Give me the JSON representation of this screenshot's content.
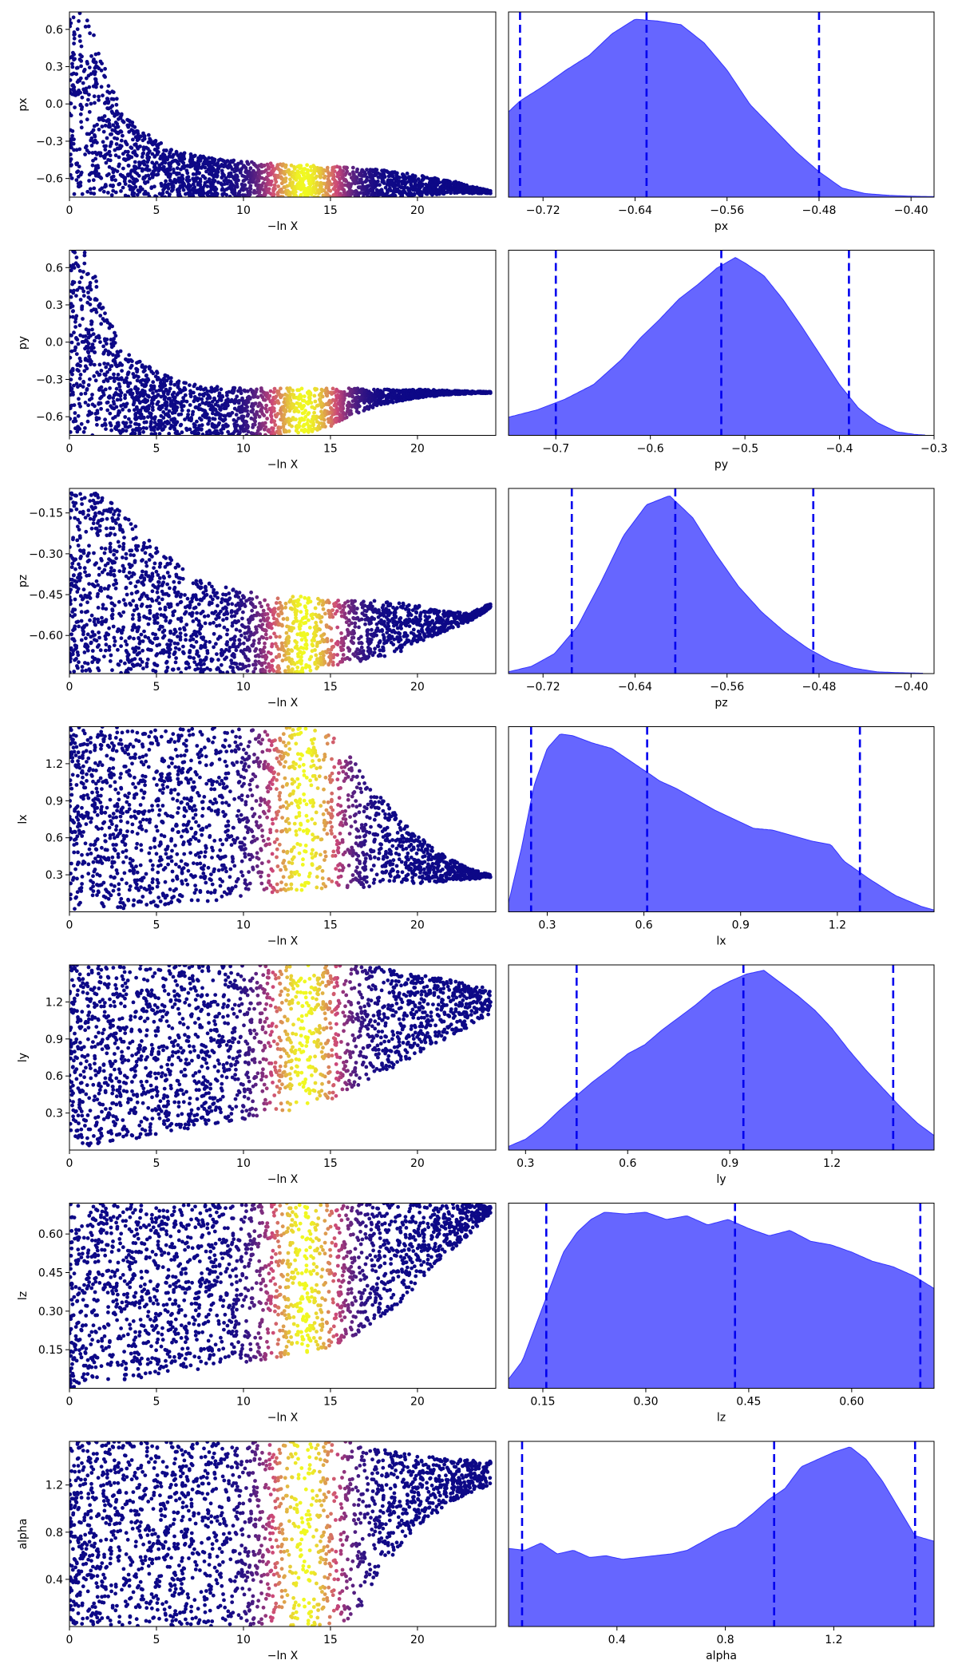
{
  "figure": {
    "type": "trace-plot",
    "rows": 7,
    "columns": 2
  },
  "colors": {
    "scatter_low": "#0d0887",
    "scatter_mid": "#cc4778",
    "scatter_high": "#f0f921",
    "kde_fill": "#6666ff",
    "kde_edge": "#3333ff",
    "quantile_line": "#0000ee"
  },
  "chart_data": [
    {
      "panel": "trace",
      "param": "px",
      "type": "scatter",
      "colormap": "plasma",
      "xlabel": "−ln X",
      "ylabel": "px",
      "xlim": [
        0,
        24.5
      ],
      "ylim": [
        -0.75,
        0.74
      ],
      "xticks": [
        0,
        5,
        10,
        15,
        20
      ],
      "xticklabels": [
        "0",
        "5",
        "10",
        "15",
        "20"
      ],
      "yticks": [
        0.6,
        0.3,
        0.0,
        -0.3,
        -0.6
      ],
      "yticklabels": [
        "0.6",
        "0.3",
        "0.0",
        "−0.3",
        "−0.6"
      ],
      "envelope": {
        "x": [
          0,
          1,
          2,
          3,
          4,
          6,
          8,
          10,
          12,
          15,
          18,
          20,
          22,
          24.2
        ],
        "upper": [
          0.74,
          0.74,
          0.3,
          -0.05,
          -0.2,
          -0.38,
          -0.43,
          -0.46,
          -0.48,
          -0.5,
          -0.53,
          -0.57,
          -0.62,
          -0.7
        ],
        "lower": [
          -0.75,
          -0.75,
          -0.75,
          -0.75,
          -0.75,
          -0.75,
          -0.75,
          -0.75,
          -0.75,
          -0.75,
          -0.75,
          -0.74,
          -0.72,
          -0.72
        ]
      }
    },
    {
      "panel": "posterior",
      "param": "px",
      "type": "area",
      "xlabel": "px",
      "xlim": [
        -0.75,
        -0.38
      ],
      "xticks": [
        -0.72,
        -0.64,
        -0.56,
        -0.48,
        -0.4
      ],
      "xticklabels": [
        "−0.72",
        "−0.64",
        "−0.56",
        "−0.48",
        "−0.40"
      ],
      "quantiles": [
        -0.74,
        -0.63,
        -0.48
      ],
      "density": {
        "x": [
          -0.75,
          -0.74,
          -0.72,
          -0.7,
          -0.68,
          -0.66,
          -0.64,
          -0.62,
          -0.6,
          -0.58,
          -0.56,
          -0.54,
          -0.52,
          -0.5,
          -0.48,
          -0.46,
          -0.44,
          -0.42,
          -0.4,
          -0.38
        ],
        "y": [
          0.47,
          0.53,
          0.61,
          0.7,
          0.78,
          0.9,
          0.98,
          0.97,
          0.95,
          0.85,
          0.7,
          0.51,
          0.38,
          0.25,
          0.14,
          0.05,
          0.02,
          0.01,
          0.005,
          0.003
        ]
      }
    },
    {
      "panel": "trace",
      "param": "py",
      "type": "scatter",
      "colormap": "plasma",
      "xlabel": "−ln X",
      "ylabel": "py",
      "xlim": [
        0,
        24.5
      ],
      "ylim": [
        -0.75,
        0.74
      ],
      "xticks": [
        0,
        5,
        10,
        15,
        20
      ],
      "xticklabels": [
        "0",
        "5",
        "10",
        "15",
        "20"
      ],
      "yticks": [
        0.6,
        0.3,
        0.0,
        -0.3,
        -0.6
      ],
      "yticklabels": [
        "0.6",
        "0.3",
        "0.0",
        "−0.3",
        "−0.6"
      ],
      "envelope": {
        "x": [
          0,
          1,
          2,
          3,
          4,
          6,
          8,
          10,
          12,
          14,
          15,
          16,
          18,
          20,
          22,
          24.2
        ],
        "upper": [
          0.74,
          0.74,
          0.3,
          -0.05,
          -0.15,
          -0.3,
          -0.35,
          -0.37,
          -0.37,
          -0.37,
          -0.37,
          -0.37,
          -0.38,
          -0.38,
          -0.39,
          -0.4
        ],
        "lower": [
          -0.75,
          -0.75,
          -0.75,
          -0.75,
          -0.75,
          -0.75,
          -0.75,
          -0.75,
          -0.75,
          -0.72,
          -0.68,
          -0.6,
          -0.5,
          -0.45,
          -0.42,
          -0.41
        ]
      }
    },
    {
      "panel": "posterior",
      "param": "py",
      "type": "area",
      "xlabel": "py",
      "xlim": [
        -0.75,
        -0.3
      ],
      "xticks": [
        -0.7,
        -0.6,
        -0.5,
        -0.4,
        -0.3
      ],
      "xticklabels": [
        "−0.7",
        "−0.6",
        "−0.5",
        "−0.4",
        "−0.3"
      ],
      "quantiles": [
        -0.7,
        -0.525,
        -0.39
      ],
      "density": {
        "x": [
          -0.75,
          -0.72,
          -0.69,
          -0.66,
          -0.63,
          -0.61,
          -0.59,
          -0.57,
          -0.55,
          -0.53,
          -0.51,
          -0.5,
          -0.48,
          -0.46,
          -0.44,
          -0.42,
          -0.4,
          -0.38,
          -0.36,
          -0.34,
          -0.32,
          -0.31
        ],
        "y": [
          0.1,
          0.14,
          0.2,
          0.28,
          0.42,
          0.54,
          0.64,
          0.75,
          0.83,
          0.92,
          0.98,
          0.95,
          0.88,
          0.75,
          0.6,
          0.44,
          0.28,
          0.15,
          0.07,
          0.02,
          0.005,
          0.002
        ]
      }
    },
    {
      "panel": "trace",
      "param": "pz",
      "type": "scatter",
      "colormap": "plasma",
      "xlabel": "−ln X",
      "ylabel": "pz",
      "xlim": [
        0,
        24.5
      ],
      "ylim": [
        -0.74,
        -0.06
      ],
      "xticks": [
        0,
        5,
        10,
        15,
        20
      ],
      "xticklabels": [
        "0",
        "5",
        "10",
        "15",
        "20"
      ],
      "yticks": [
        -0.15,
        -0.3,
        -0.45,
        -0.6
      ],
      "yticklabels": [
        "−0.15",
        "−0.30",
        "−0.45",
        "−0.60"
      ],
      "envelope": {
        "x": [
          0,
          1,
          2,
          3,
          5,
          7,
          9,
          11,
          13,
          15,
          17,
          19,
          21,
          23,
          24.2
        ],
        "upper": [
          -0.06,
          -0.06,
          -0.08,
          -0.15,
          -0.27,
          -0.38,
          -0.42,
          -0.45,
          -0.45,
          -0.47,
          -0.47,
          -0.48,
          -0.5,
          -0.52,
          -0.48
        ],
        "lower": [
          -0.74,
          -0.74,
          -0.74,
          -0.74,
          -0.74,
          -0.74,
          -0.74,
          -0.74,
          -0.74,
          -0.72,
          -0.7,
          -0.66,
          -0.6,
          -0.55,
          -0.5
        ]
      }
    },
    {
      "panel": "posterior",
      "param": "pz",
      "type": "area",
      "xlabel": "pz",
      "xlim": [
        -0.75,
        -0.38
      ],
      "xticks": [
        -0.72,
        -0.64,
        -0.56,
        -0.48,
        -0.4
      ],
      "xticklabels": [
        "−0.72",
        "−0.64",
        "−0.56",
        "−0.48",
        "−0.40"
      ],
      "quantiles": [
        -0.695,
        -0.605,
        -0.485
      ],
      "density": {
        "x": [
          -0.75,
          -0.73,
          -0.71,
          -0.69,
          -0.67,
          -0.65,
          -0.63,
          -0.61,
          -0.59,
          -0.57,
          -0.55,
          -0.53,
          -0.51,
          -0.49,
          -0.47,
          -0.45,
          -0.43,
          -0.41,
          -0.39
        ],
        "y": [
          0.01,
          0.04,
          0.11,
          0.26,
          0.5,
          0.76,
          0.93,
          0.98,
          0.86,
          0.66,
          0.48,
          0.34,
          0.23,
          0.14,
          0.07,
          0.03,
          0.01,
          0.005,
          0.002
        ]
      }
    },
    {
      "panel": "trace",
      "param": "lx",
      "type": "scatter",
      "colormap": "plasma",
      "xlabel": "−ln X",
      "ylabel": "lx",
      "xlim": [
        0,
        24.5
      ],
      "ylim": [
        0.0,
        1.5
      ],
      "xticks": [
        0,
        5,
        10,
        15,
        20
      ],
      "xticklabels": [
        "0",
        "5",
        "10",
        "15",
        "20"
      ],
      "yticks": [
        1.2,
        0.9,
        0.6,
        0.3
      ],
      "yticklabels": [
        "1.2",
        "0.9",
        "0.6",
        "0.3"
      ],
      "envelope": {
        "x": [
          0,
          2,
          6,
          10,
          13,
          15,
          17,
          19,
          21,
          23,
          24.2
        ],
        "upper": [
          1.5,
          1.5,
          1.5,
          1.5,
          1.5,
          1.45,
          1.1,
          0.75,
          0.5,
          0.35,
          0.3
        ],
        "lower": [
          0.0,
          0.02,
          0.05,
          0.12,
          0.17,
          0.19,
          0.2,
          0.22,
          0.24,
          0.26,
          0.28
        ]
      }
    },
    {
      "panel": "posterior",
      "param": "lx",
      "type": "area",
      "xlabel": "lx",
      "xlim": [
        0.18,
        1.5
      ],
      "xticks": [
        0.3,
        0.6,
        0.9,
        1.2
      ],
      "xticklabels": [
        "0.3",
        "0.6",
        "0.9",
        "1.2"
      ],
      "quantiles": [
        0.25,
        0.61,
        1.27
      ],
      "density": {
        "x": [
          0.18,
          0.22,
          0.26,
          0.3,
          0.34,
          0.38,
          0.44,
          0.5,
          0.55,
          0.6,
          0.65,
          0.7,
          0.76,
          0.82,
          0.88,
          0.94,
          1.0,
          1.06,
          1.12,
          1.18,
          1.22,
          1.3,
          1.38,
          1.46,
          1.5
        ],
        "y": [
          0.05,
          0.35,
          0.7,
          0.9,
          0.98,
          0.97,
          0.93,
          0.9,
          0.84,
          0.78,
          0.72,
          0.68,
          0.62,
          0.56,
          0.51,
          0.46,
          0.45,
          0.42,
          0.39,
          0.37,
          0.28,
          0.18,
          0.09,
          0.03,
          0.01
        ]
      }
    },
    {
      "panel": "trace",
      "param": "ly",
      "type": "scatter",
      "colormap": "plasma",
      "xlabel": "−ln X",
      "ylabel": "ly",
      "xlim": [
        0,
        24.5
      ],
      "ylim": [
        0.0,
        1.5
      ],
      "xticks": [
        0,
        5,
        10,
        15,
        20
      ],
      "xticklabels": [
        "0",
        "5",
        "10",
        "15",
        "20"
      ],
      "yticks": [
        1.2,
        0.9,
        0.6,
        0.3
      ],
      "yticklabels": [
        "1.2",
        "0.9",
        "0.6",
        "0.3"
      ],
      "envelope": {
        "x": [
          0,
          2,
          6,
          10,
          13,
          15,
          17,
          19,
          21,
          23,
          24.2
        ],
        "upper": [
          1.5,
          1.5,
          1.5,
          1.5,
          1.5,
          1.5,
          1.5,
          1.45,
          1.4,
          1.35,
          1.3
        ],
        "lower": [
          0.0,
          0.05,
          0.15,
          0.25,
          0.32,
          0.4,
          0.55,
          0.7,
          0.85,
          1.0,
          1.1
        ]
      }
    },
    {
      "panel": "posterior",
      "param": "ly",
      "type": "area",
      "xlabel": "ly",
      "xlim": [
        0.25,
        1.5
      ],
      "xticks": [
        0.3,
        0.6,
        0.9,
        1.2
      ],
      "xticklabels": [
        "0.3",
        "0.6",
        "0.9",
        "1.2"
      ],
      "quantiles": [
        0.45,
        0.94,
        1.38
      ],
      "density": {
        "x": [
          0.25,
          0.3,
          0.35,
          0.4,
          0.45,
          0.5,
          0.55,
          0.6,
          0.65,
          0.7,
          0.75,
          0.8,
          0.85,
          0.9,
          0.95,
          1.0,
          1.05,
          1.1,
          1.15,
          1.2,
          1.25,
          1.3,
          1.35,
          1.4,
          1.45,
          1.5
        ],
        "y": [
          0.02,
          0.06,
          0.13,
          0.22,
          0.3,
          0.38,
          0.45,
          0.53,
          0.58,
          0.66,
          0.73,
          0.8,
          0.88,
          0.93,
          0.97,
          0.99,
          0.92,
          0.85,
          0.77,
          0.67,
          0.55,
          0.44,
          0.34,
          0.24,
          0.15,
          0.08
        ]
      }
    },
    {
      "panel": "trace",
      "param": "lz",
      "type": "scatter",
      "colormap": "plasma",
      "xlabel": "−ln X",
      "ylabel": "lz",
      "xlim": [
        0,
        24.5
      ],
      "ylim": [
        0.0,
        0.72
      ],
      "xticks": [
        0,
        5,
        10,
        15,
        20
      ],
      "xticklabels": [
        "0",
        "5",
        "10",
        "15",
        "20"
      ],
      "yticks": [
        0.6,
        0.45,
        0.3,
        0.15
      ],
      "yticklabels": [
        "0.60",
        "0.45",
        "0.30",
        "0.15"
      ],
      "envelope": {
        "x": [
          0,
          2,
          6,
          10,
          13,
          15,
          17,
          19,
          21,
          23,
          24.2
        ],
        "upper": [
          0.72,
          0.72,
          0.72,
          0.72,
          0.72,
          0.72,
          0.72,
          0.72,
          0.72,
          0.72,
          0.71
        ],
        "lower": [
          0.0,
          0.02,
          0.06,
          0.1,
          0.13,
          0.16,
          0.22,
          0.33,
          0.48,
          0.6,
          0.68
        ]
      }
    },
    {
      "panel": "posterior",
      "param": "lz",
      "type": "area",
      "xlabel": "lz",
      "xlim": [
        0.1,
        0.72
      ],
      "xticks": [
        0.15,
        0.3,
        0.45,
        0.6
      ],
      "xticklabels": [
        "0.15",
        "0.30",
        "0.45",
        "0.60"
      ],
      "quantiles": [
        0.155,
        0.43,
        0.7
      ],
      "density": {
        "x": [
          0.1,
          0.12,
          0.14,
          0.16,
          0.18,
          0.2,
          0.22,
          0.24,
          0.27,
          0.3,
          0.33,
          0.36,
          0.39,
          0.42,
          0.45,
          0.48,
          0.51,
          0.54,
          0.57,
          0.6,
          0.63,
          0.66,
          0.69,
          0.72
        ],
        "y": [
          0.05,
          0.15,
          0.35,
          0.55,
          0.75,
          0.86,
          0.93,
          0.97,
          0.96,
          0.97,
          0.93,
          0.95,
          0.9,
          0.93,
          0.88,
          0.84,
          0.87,
          0.81,
          0.79,
          0.75,
          0.7,
          0.67,
          0.62,
          0.55
        ]
      }
    },
    {
      "panel": "trace",
      "param": "alpha",
      "type": "scatter",
      "colormap": "plasma",
      "xlabel": "−ln X",
      "ylabel": "alpha",
      "xlim": [
        0,
        24.5
      ],
      "ylim": [
        0.0,
        1.57
      ],
      "xticks": [
        0,
        5,
        10,
        15,
        20
      ],
      "xticklabels": [
        "0",
        "5",
        "10",
        "15",
        "20"
      ],
      "yticks": [
        1.2,
        0.8,
        0.4
      ],
      "yticklabels": [
        "1.2",
        "0.8",
        "0.4"
      ],
      "envelope": {
        "x": [
          0,
          2,
          6,
          10,
          13,
          15,
          16,
          17,
          18,
          20,
          22,
          24.2
        ],
        "upper": [
          1.57,
          1.57,
          1.57,
          1.57,
          1.57,
          1.57,
          1.57,
          1.55,
          1.5,
          1.45,
          1.42,
          1.4
        ],
        "lower": [
          0.0,
          0.0,
          0.0,
          0.0,
          0.0,
          0.0,
          0.05,
          0.2,
          0.5,
          0.85,
          1.05,
          1.2
        ]
      }
    },
    {
      "panel": "posterior",
      "param": "alpha",
      "type": "area",
      "xlabel": "alpha",
      "xlim": [
        0.0,
        1.57
      ],
      "xticks": [
        0.4,
        0.8,
        1.2
      ],
      "xticklabels": [
        "0.4",
        "0.8",
        "1.2"
      ],
      "quantiles": [
        0.05,
        0.98,
        1.5
      ],
      "density": {
        "x": [
          0.0,
          0.06,
          0.12,
          0.18,
          0.24,
          0.3,
          0.36,
          0.42,
          0.48,
          0.54,
          0.6,
          0.66,
          0.72,
          0.78,
          0.84,
          0.9,
          0.96,
          1.02,
          1.08,
          1.14,
          1.2,
          1.26,
          1.32,
          1.38,
          1.44,
          1.5,
          1.57
        ],
        "y": [
          0.43,
          0.42,
          0.46,
          0.4,
          0.42,
          0.38,
          0.39,
          0.37,
          0.38,
          0.39,
          0.4,
          0.42,
          0.47,
          0.52,
          0.55,
          0.62,
          0.7,
          0.76,
          0.88,
          0.92,
          0.96,
          0.99,
          0.92,
          0.8,
          0.65,
          0.5,
          0.47
        ]
      }
    }
  ]
}
